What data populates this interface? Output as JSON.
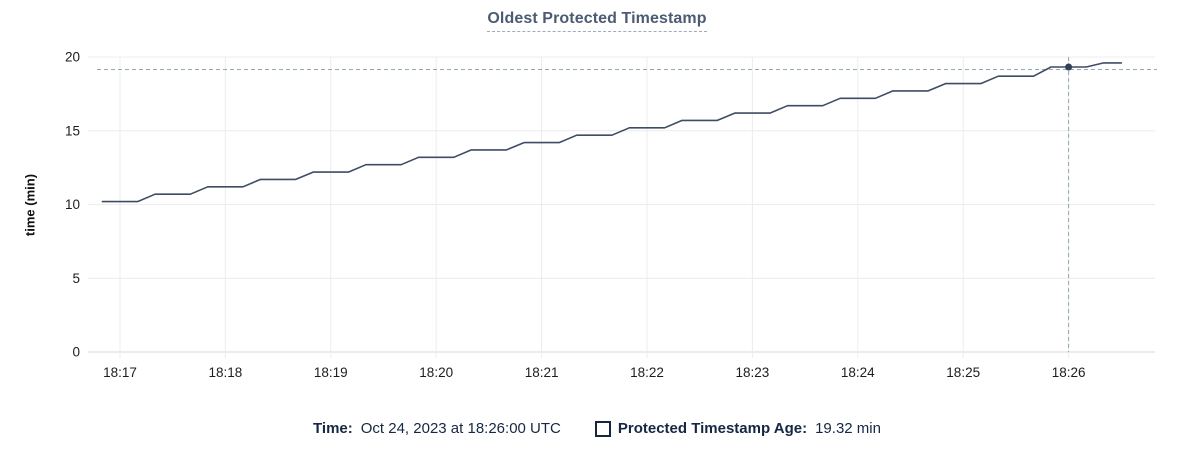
{
  "title": {
    "text": "Oldest Protected Timestamp"
  },
  "tooltip": {
    "time_label": "Time:",
    "time_value": "Oct 24, 2023 at 18:26:00 UTC",
    "series_label": "Protected Timestamp Age:",
    "series_value": "19.32 min"
  },
  "colors": {
    "title": "#4c5b74",
    "legend_text": "#152743",
    "line": "#3e4c64",
    "hover_point": "#2f4057",
    "crosshair": "#92a8b4",
    "grid": "#ececec",
    "axis": "#d8d8d8"
  },
  "chart_data": {
    "type": "line",
    "title": "Oldest Protected Timestamp",
    "xlabel": "",
    "ylabel": "time (min)",
    "ylim": [
      0,
      20
    ],
    "y_ticks": [
      0,
      5,
      10,
      15,
      20
    ],
    "x_ticks": [
      "18:17",
      "18:18",
      "18:19",
      "18:20",
      "18:21",
      "18:22",
      "18:23",
      "18:24",
      "18:25",
      "18:26"
    ],
    "grid": true,
    "legend_position": "bottom",
    "series": [
      {
        "name": "Protected Timestamp Age",
        "color": "#3e4c64",
        "points": [
          [
            "18:16:50",
            10.2
          ],
          [
            "18:17:10",
            10.2
          ],
          [
            "18:17:20",
            10.7
          ],
          [
            "18:17:40",
            10.7
          ],
          [
            "18:17:50",
            11.2
          ],
          [
            "18:18:10",
            11.2
          ],
          [
            "18:18:20",
            11.7
          ],
          [
            "18:18:40",
            11.7
          ],
          [
            "18:18:50",
            12.2
          ],
          [
            "18:19:10",
            12.2
          ],
          [
            "18:19:20",
            12.7
          ],
          [
            "18:19:40",
            12.7
          ],
          [
            "18:19:50",
            13.2
          ],
          [
            "18:20:10",
            13.2
          ],
          [
            "18:20:20",
            13.7
          ],
          [
            "18:20:40",
            13.7
          ],
          [
            "18:20:50",
            14.2
          ],
          [
            "18:21:10",
            14.2
          ],
          [
            "18:21:20",
            14.7
          ],
          [
            "18:21:40",
            14.7
          ],
          [
            "18:21:50",
            15.2
          ],
          [
            "18:22:10",
            15.2
          ],
          [
            "18:22:20",
            15.7
          ],
          [
            "18:22:40",
            15.7
          ],
          [
            "18:22:50",
            16.2
          ],
          [
            "18:23:10",
            16.2
          ],
          [
            "18:23:20",
            16.7
          ],
          [
            "18:23:40",
            16.7
          ],
          [
            "18:23:50",
            17.2
          ],
          [
            "18:24:10",
            17.2
          ],
          [
            "18:24:20",
            17.7
          ],
          [
            "18:24:40",
            17.7
          ],
          [
            "18:24:50",
            18.2
          ],
          [
            "18:25:10",
            18.2
          ],
          [
            "18:25:20",
            18.7
          ],
          [
            "18:25:40",
            18.7
          ],
          [
            "18:25:50",
            19.32
          ],
          [
            "18:26:10",
            19.32
          ],
          [
            "18:26:20",
            19.6
          ],
          [
            "18:26:30",
            19.6
          ]
        ]
      }
    ],
    "hover": {
      "x": "18:26:00",
      "value": 19.32,
      "crosshair_y_value": 19.15
    }
  }
}
